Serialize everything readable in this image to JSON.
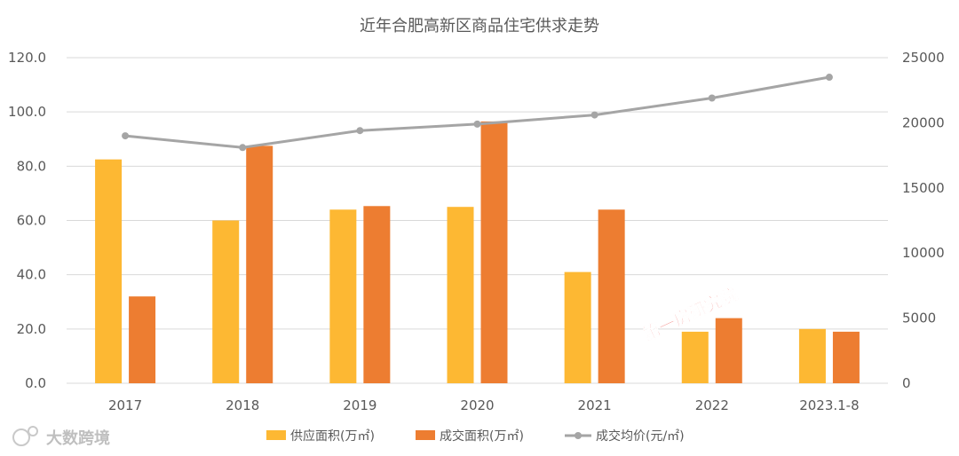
{
  "chart_data": {
    "type": "bar+line",
    "title": "近年合肥高新区商品住宅供求走势",
    "categories": [
      "2017",
      "2018",
      "2019",
      "2020",
      "2021",
      "2022",
      "2023.1-8"
    ],
    "series": [
      {
        "name": "供应面积(万㎡)",
        "type": "bar",
        "axis": "left",
        "color": "#FDB833",
        "values": [
          82.5,
          60.0,
          64.0,
          65.0,
          41.0,
          19.0,
          20.0
        ]
      },
      {
        "name": "成交面积(万㎡)",
        "type": "bar",
        "axis": "left",
        "color": "#ED7D31",
        "values": [
          32.0,
          87.5,
          65.3,
          96.5,
          64.0,
          24.0,
          19.0
        ]
      },
      {
        "name": "成交均价(元/㎡)",
        "type": "line",
        "axis": "right",
        "color": "#A5A5A5",
        "values": [
          19000,
          18100,
          19400,
          19900,
          20600,
          21900,
          23500
        ]
      }
    ],
    "left_axis": {
      "min": 0,
      "max": 120,
      "step": 20,
      "tick_labels": [
        "0.0",
        "20.0",
        "40.0",
        "60.0",
        "80.0",
        "100.0",
        "120.0"
      ]
    },
    "right_axis": {
      "min": 0,
      "max": 25000,
      "step": 5000,
      "tick_labels": [
        "0",
        "5000",
        "10000",
        "15000",
        "20000",
        "25000"
      ]
    },
    "grid": true,
    "legend_position": "bottom"
  },
  "watermarks": {
    "center": "第一房研究院",
    "corner": "大数跨境"
  }
}
